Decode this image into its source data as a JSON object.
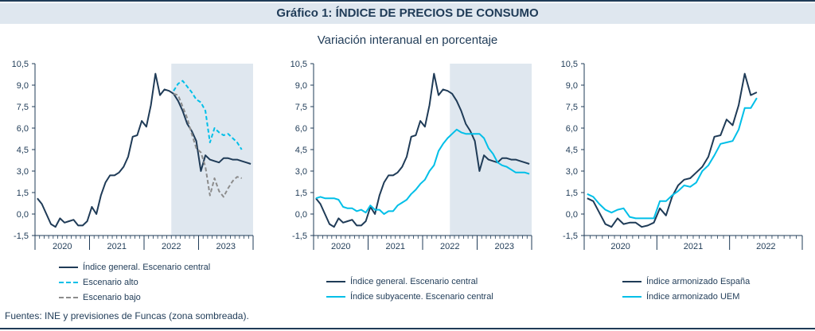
{
  "header": {
    "title": "Gráfico 1: ÍNDICE DE PRECIOS DE CONSUMO",
    "subtitle": "Variación interanual en porcentaje"
  },
  "footer": {
    "source": "Fuentes: INE y previsiones de Funcas (zona sombreada)."
  },
  "colors": {
    "dark": "#1f3b57",
    "cyan": "#00bfe8",
    "gray": "#8c8c8c",
    "shade": "#dfe7ef"
  },
  "chart_data": [
    {
      "type": "line",
      "ylim": [
        -1.5,
        10.5
      ],
      "yticks": [
        "10,5",
        "9,0",
        "7,5",
        "6,0",
        "4,5",
        "3,0",
        "1,5",
        "0,0",
        "-1,5"
      ],
      "x_groups": [
        {
          "label": "2020",
          "start": "2020-01",
          "end": "2020-12"
        },
        {
          "label": "2021",
          "start": "2021-01",
          "end": "2021-12"
        },
        {
          "label": "2022",
          "start": "2022-01",
          "end": "2022-12"
        },
        {
          "label": "2023",
          "start": "2023-01",
          "end": "2023-12"
        }
      ],
      "x_range": [
        "2020-01",
        "2023-12"
      ],
      "shaded_from": "2022-07",
      "series": [
        {
          "name": "Índice general. Escenario central",
          "color": "dark",
          "style": "solid",
          "start": "2020-01",
          "values": [
            1.1,
            0.7,
            0.0,
            -0.7,
            -0.9,
            -0.3,
            -0.6,
            -0.5,
            -0.4,
            -0.8,
            -0.8,
            -0.5,
            0.5,
            0.0,
            1.3,
            2.2,
            2.7,
            2.7,
            2.9,
            3.3,
            4.0,
            5.4,
            5.5,
            6.5,
            6.1,
            7.6,
            9.8,
            8.3,
            8.7,
            8.6,
            8.4,
            7.9,
            7.2,
            6.3,
            5.8,
            5.1,
            3.0,
            4.1,
            3.8,
            3.7,
            3.6,
            3.9,
            3.9,
            3.8,
            3.8,
            3.7,
            3.6,
            3.5
          ]
        },
        {
          "name": "Escenario alto",
          "color": "cyan",
          "style": "dashed",
          "start": "2022-07",
          "values": [
            8.6,
            9.1,
            9.3,
            8.9,
            8.5,
            8.0,
            7.8,
            7.2,
            5.0,
            6.0,
            5.7,
            5.5,
            5.6,
            5.3,
            5.0,
            4.5
          ]
        },
        {
          "name": "Escenario bajo",
          "color": "gray",
          "style": "dashed",
          "start": "2022-07",
          "values": [
            8.4,
            8.3,
            7.5,
            6.7,
            5.6,
            4.6,
            4.3,
            3.3,
            1.3,
            2.5,
            1.6,
            1.2,
            1.8,
            2.3,
            2.6,
            2.5
          ]
        }
      ]
    },
    {
      "type": "line",
      "ylim": [
        -1.5,
        10.5
      ],
      "yticks": [
        "10,5",
        "9,0",
        "7,5",
        "6,0",
        "4,5",
        "3,0",
        "1,5",
        "0,0",
        "-1,5"
      ],
      "x_groups": [
        {
          "label": "2020",
          "start": "2020-01",
          "end": "2020-12"
        },
        {
          "label": "2021",
          "start": "2021-01",
          "end": "2021-12"
        },
        {
          "label": "2022",
          "start": "2022-01",
          "end": "2022-12"
        },
        {
          "label": "2023",
          "start": "2023-01",
          "end": "2023-12"
        }
      ],
      "x_range": [
        "2020-01",
        "2023-12"
      ],
      "shaded_from": "2022-07",
      "series": [
        {
          "name": "Índice general. Escenario central",
          "color": "dark",
          "style": "solid",
          "start": "2020-01",
          "values": [
            1.1,
            0.7,
            0.0,
            -0.7,
            -0.9,
            -0.3,
            -0.6,
            -0.5,
            -0.4,
            -0.8,
            -0.8,
            -0.5,
            0.5,
            0.0,
            1.3,
            2.2,
            2.7,
            2.7,
            2.9,
            3.3,
            4.0,
            5.4,
            5.5,
            6.5,
            6.1,
            7.6,
            9.8,
            8.3,
            8.7,
            8.6,
            8.4,
            7.9,
            7.2,
            6.3,
            5.8,
            5.1,
            3.0,
            4.1,
            3.8,
            3.7,
            3.6,
            3.9,
            3.9,
            3.8,
            3.8,
            3.7,
            3.6,
            3.5
          ]
        },
        {
          "name": "Índice subyacente. Escenario central",
          "color": "cyan",
          "style": "solid",
          "start": "2020-01",
          "values": [
            1.1,
            1.2,
            1.1,
            1.1,
            1.1,
            1.0,
            0.5,
            0.4,
            0.4,
            0.2,
            0.3,
            0.1,
            0.6,
            0.3,
            0.3,
            0.0,
            0.2,
            0.2,
            0.6,
            0.8,
            1.0,
            1.4,
            1.7,
            2.1,
            2.4,
            3.0,
            3.4,
            4.4,
            4.9,
            5.3,
            5.6,
            5.9,
            5.7,
            5.6,
            5.6,
            5.6,
            5.6,
            5.3,
            4.6,
            4.2,
            3.6,
            3.4,
            3.3,
            3.1,
            2.9,
            2.9,
            2.9,
            2.8
          ]
        }
      ]
    },
    {
      "type": "line",
      "ylim": [
        -1.5,
        10.5
      ],
      "yticks": [
        "10,5",
        "9,0",
        "7,5",
        "6,0",
        "4,5",
        "3,0",
        "1,5",
        "0,0",
        "-1,5"
      ],
      "x_groups": [
        {
          "label": "2020",
          "start": "2020-01",
          "end": "2020-12"
        },
        {
          "label": "2021",
          "start": "2021-01",
          "end": "2021-12"
        },
        {
          "label": "2022",
          "start": "2022-01",
          "end": "2022-12"
        }
      ],
      "x_range": [
        "2020-01",
        "2022-12"
      ],
      "shaded_from": null,
      "series": [
        {
          "name": "Índice armonizado España",
          "color": "dark",
          "style": "solid",
          "start": "2020-01",
          "values": [
            1.1,
            0.9,
            0.1,
            -0.7,
            -0.9,
            -0.3,
            -0.7,
            -0.6,
            -0.6,
            -0.9,
            -0.8,
            -0.6,
            0.4,
            -0.1,
            1.2,
            2.0,
            2.4,
            2.5,
            2.9,
            3.3,
            4.0,
            5.4,
            5.5,
            6.6,
            6.2,
            7.6,
            9.8,
            8.3,
            8.5
          ]
        },
        {
          "name": "Índice armonizado UEM",
          "color": "cyan",
          "style": "solid",
          "start": "2020-01",
          "values": [
            1.4,
            1.2,
            0.7,
            0.3,
            0.1,
            0.3,
            0.4,
            -0.2,
            -0.3,
            -0.3,
            -0.3,
            -0.3,
            0.9,
            0.9,
            1.3,
            1.6,
            2.0,
            1.9,
            2.2,
            3.0,
            3.4,
            4.1,
            4.9,
            5.0,
            5.1,
            5.9,
            7.4,
            7.4,
            8.1
          ]
        }
      ]
    }
  ],
  "legends": [
    {
      "items": [
        {
          "label": "Índice general. Escenario central",
          "color": "dark",
          "style": "solid"
        },
        {
          "label": "Escenario alto",
          "color": "cyan",
          "style": "dashed"
        },
        {
          "label": "Escenario bajo",
          "color": "gray",
          "style": "dashed"
        }
      ]
    },
    {
      "items": [
        {
          "label": "Índice general. Escenario central",
          "color": "dark",
          "style": "solid"
        },
        {
          "label": "Índice subyacente. Escenario central",
          "color": "cyan",
          "style": "solid"
        }
      ]
    },
    {
      "items": [
        {
          "label": "Índice armonizado España",
          "color": "dark",
          "style": "solid"
        },
        {
          "label": "Índice armonizado UEM",
          "color": "cyan",
          "style": "solid"
        }
      ]
    }
  ]
}
